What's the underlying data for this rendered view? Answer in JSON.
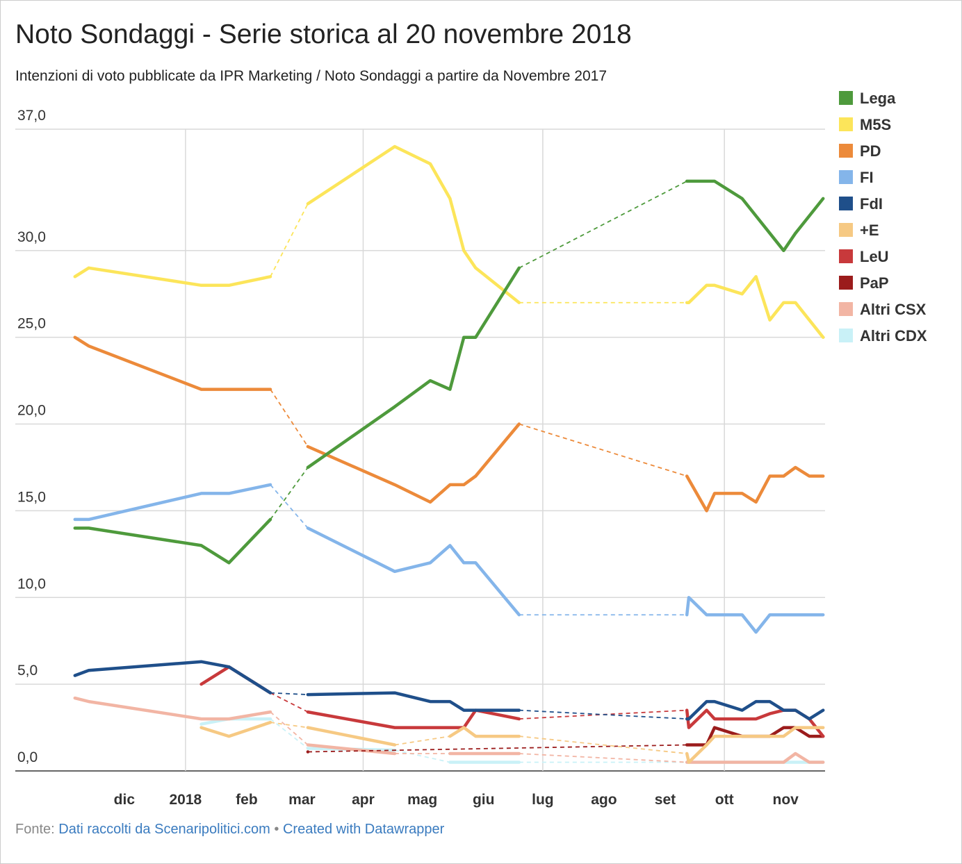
{
  "chart_data": {
    "type": "line",
    "title": "Noto Sondaggi - Serie storica al 20 novembre 2018",
    "subtitle": "Intenzioni di voto pubblicate da IPR Marketing / Noto Sondaggi a partire da Novembre 2017",
    "x": [
      "2017-11-06",
      "2017-11-13",
      "2018-01-09",
      "2018-01-23",
      "2018-02-13",
      "2018-03-04",
      "2018-04-17",
      "2018-05-05",
      "2018-05-15",
      "2018-05-22",
      "2018-05-28",
      "2018-06-19",
      "2018-09-12",
      "2018-09-13",
      "2018-09-22",
      "2018-09-26",
      "2018-10-10",
      "2018-10-17",
      "2018-10-24",
      "2018-10-31",
      "2018-11-06",
      "2018-11-13",
      "2018-11-20"
    ],
    "xlim": [
      "2017-11-05",
      "2018-11-21"
    ],
    "xticks": [
      {
        "value": "2017-12-01",
        "label": "dic"
      },
      {
        "value": "2018-01-01",
        "label": "2018"
      },
      {
        "value": "2018-02-01",
        "label": "feb"
      },
      {
        "value": "2018-03-01",
        "label": "mar"
      },
      {
        "value": "2018-04-01",
        "label": "apr"
      },
      {
        "value": "2018-05-01",
        "label": "mag"
      },
      {
        "value": "2018-06-01",
        "label": "giu"
      },
      {
        "value": "2018-07-01",
        "label": "lug"
      },
      {
        "value": "2018-08-01",
        "label": "ago"
      },
      {
        "value": "2018-09-01",
        "label": "set"
      },
      {
        "value": "2018-10-01",
        "label": "ott"
      },
      {
        "value": "2018-11-01",
        "label": "nov"
      }
    ],
    "xgrid": [
      "2018-01-01",
      "2018-04-01",
      "2018-07-01",
      "2018-10-01"
    ],
    "ylim": [
      0,
      37
    ],
    "yticks": [
      {
        "value": 0,
        "label": "0,0"
      },
      {
        "value": 5,
        "label": "5,0"
      },
      {
        "value": 10,
        "label": "10,0"
      },
      {
        "value": 15,
        "label": "15,0"
      },
      {
        "value": 20,
        "label": "20,0"
      },
      {
        "value": 25,
        "label": "25,0"
      },
      {
        "value": 30,
        "label": "30,0"
      },
      {
        "value": 37,
        "label": "37,0"
      }
    ],
    "grid": true,
    "legend": "right",
    "dashed_spans": [
      [
        "2018-02-13",
        "2018-03-04"
      ],
      [
        "2018-06-19",
        "2018-09-12"
      ]
    ],
    "series": [
      {
        "name": "Lega",
        "color": "#4e9a3c",
        "values": [
          14,
          14,
          13,
          12,
          14.5,
          17.5,
          21,
          22.5,
          22,
          25,
          25,
          29,
          34,
          34,
          34,
          34,
          33,
          32,
          31,
          30,
          31,
          32,
          33
        ]
      },
      {
        "name": "M5S",
        "color": "#fce55a",
        "values": [
          28.5,
          29,
          28,
          28,
          28.5,
          32.7,
          36,
          35,
          33,
          30,
          29,
          27,
          27,
          27,
          28,
          28,
          27.5,
          28.5,
          26,
          27,
          27,
          26,
          25
        ]
      },
      {
        "name": "PD",
        "color": "#ec8a3a",
        "values": [
          25,
          24.5,
          22,
          22,
          22,
          18.7,
          16.5,
          15.5,
          16.5,
          16.5,
          17,
          20,
          17,
          16.8,
          15,
          16,
          16,
          15.5,
          17,
          17,
          17.5,
          17,
          17
        ]
      },
      {
        "name": "FI",
        "color": "#84b5ea",
        "values": [
          14.5,
          14.5,
          16,
          16,
          16.5,
          14,
          11.5,
          12,
          13,
          12,
          12,
          9,
          9,
          10,
          9,
          9,
          9,
          8,
          9,
          9,
          9,
          9,
          9
        ]
      },
      {
        "name": "FdI",
        "color": "#1f4f8a",
        "values": [
          5.5,
          5.8,
          6.3,
          6,
          4.5,
          4.4,
          4.5,
          4,
          4,
          3.5,
          3.5,
          3.5,
          3,
          3,
          4,
          4,
          3.5,
          4,
          4,
          3.5,
          3.5,
          3,
          3.5
        ]
      },
      {
        "name": "+E",
        "color": "#f6c983",
        "values": [
          null,
          null,
          2.5,
          2,
          2.8,
          2.5,
          1.5,
          null,
          2,
          2.5,
          2,
          2,
          1,
          0.5,
          1.5,
          2,
          2,
          2,
          2,
          2,
          2.5,
          2.5,
          2.5
        ]
      },
      {
        "name": "LeU",
        "color": "#c8393b",
        "values": [
          null,
          null,
          5,
          6,
          4.5,
          3.4,
          2.5,
          2.5,
          2.5,
          2.5,
          3.5,
          3,
          3.5,
          2.5,
          3.5,
          3,
          3,
          3,
          3.3,
          3.5,
          3.5,
          3,
          2
        ]
      },
      {
        "name": "PaP",
        "color": "#9b1c1c",
        "values": [
          null,
          null,
          null,
          null,
          null,
          1.1,
          null,
          null,
          null,
          null,
          null,
          null,
          1.5,
          1.5,
          1.5,
          2.5,
          2,
          2,
          2,
          2.5,
          2.5,
          2,
          2
        ]
      },
      {
        "name": "Altri CSX",
        "color": "#f2b5a4",
        "values": [
          4.2,
          4,
          3,
          3,
          3.4,
          1.5,
          1,
          null,
          1,
          1,
          1,
          1,
          0.5,
          0.5,
          0.5,
          0.5,
          0.5,
          0.5,
          0.5,
          0.5,
          1,
          0.5,
          0.5
        ]
      },
      {
        "name": "Altri CDX",
        "color": "#c9f1f7",
        "values": [
          null,
          null,
          2.7,
          3,
          3,
          1.3,
          1.2,
          null,
          0.5,
          0.5,
          0.5,
          0.5,
          0.5,
          0.5,
          0.5,
          0.5,
          0.5,
          0.5,
          0.5,
          0.5,
          0.5,
          0.5,
          0.5
        ]
      }
    ],
    "source_label": "Fonte:",
    "source": "Dati raccolti da Scenaripolitici.com",
    "separator": "•",
    "credit": "Created with Datawrapper"
  }
}
